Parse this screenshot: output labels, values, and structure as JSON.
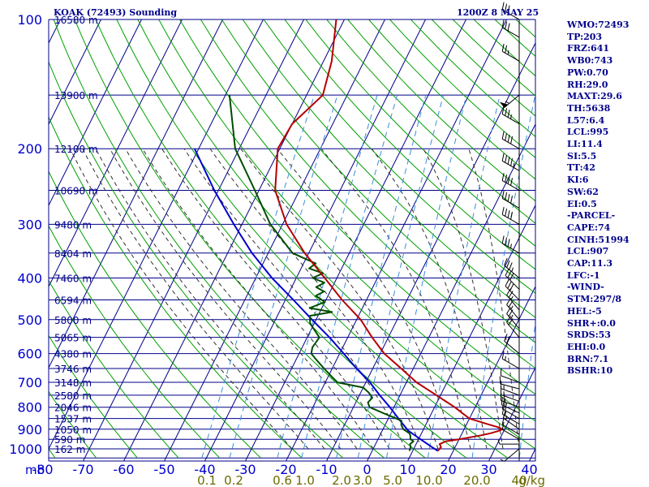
{
  "header": {
    "title": "KOAK (72493) Sounding",
    "stamp": "1200Z  8 MAY 25"
  },
  "indices": [
    "WMO:72493",
    "TP:203",
    "FRZ:641",
    "WB0:743",
    "PW:0.70",
    "RH:29.0",
    "MAXT:29.6",
    "TH:5638",
    "L57:6.4",
    "LCL:995",
    "LI:11.4",
    "SI:5.5",
    "TT:42",
    "KI:6",
    "SW:62",
    "EI:0.5",
    "-PARCEL-",
    "CAPE:74",
    "CINH:51994",
    "LCL:907",
    "CAP:11.3",
    "LFC:-1",
    "-WIND-",
    "STM:297/8",
    "HEL:-5",
    "SHR+:0.0",
    "SRDS:53",
    "EHI:0.0",
    "BRN:7.1",
    "BSHR:10"
  ],
  "colors": {
    "frame": "#00008b",
    "temperature": "#b40000",
    "dewpoint": "#004d00",
    "parcel": "#0000cd",
    "dry_adiabat": "#00a000",
    "moist_adiabat": "#303030",
    "mixing_ratio": "#3a8fd8",
    "mixing_ratio_labels": "#6b6b00"
  },
  "chart_data": {
    "type": "line",
    "title": "KOAK (72493) Sounding",
    "x_unit_label": "",
    "y_unit_label": "mb",
    "temperature_ticks": [
      "-80",
      "-70",
      "-60",
      "-50",
      "-40",
      "-30",
      "-20",
      "-10",
      "0",
      "10",
      "20",
      "30",
      "40"
    ],
    "temperature_tick_values": [
      -80,
      -70,
      -60,
      -50,
      -40,
      -30,
      -20,
      -10,
      0,
      10,
      20,
      30,
      40
    ],
    "xlim": [
      -80,
      40
    ],
    "pressure_ticks": [
      "100",
      "200",
      "300",
      "400",
      "500",
      "600",
      "700",
      "800",
      "900",
      "1000"
    ],
    "pressure_tick_values": [
      100,
      200,
      300,
      400,
      500,
      600,
      700,
      800,
      900,
      1000
    ],
    "ylim": [
      1050,
      100
    ],
    "y_scale": "log",
    "grid": true,
    "height_labels": [
      {
        "p": 100,
        "text": "16580 m"
      },
      {
        "p": 150,
        "text": "13900 m"
      },
      {
        "p": 200,
        "text": "12100 m"
      },
      {
        "p": 250,
        "text": "10690 m"
      },
      {
        "p": 300,
        "text": "9480 m"
      },
      {
        "p": 350,
        "text": "8404 m"
      },
      {
        "p": 400,
        "text": "7460 m"
      },
      {
        "p": 450,
        "text": "6594 m"
      },
      {
        "p": 500,
        "text": "5800 m"
      },
      {
        "p": 550,
        "text": "5065 m"
      },
      {
        "p": 600,
        "text": "4380 m"
      },
      {
        "p": 650,
        "text": "3746 m"
      },
      {
        "p": 700,
        "text": "3148 m"
      },
      {
        "p": 750,
        "text": "2580 m"
      },
      {
        "p": 800,
        "text": "2046 m"
      },
      {
        "p": 850,
        "text": "1537 m"
      },
      {
        "p": 900,
        "text": "1050 m"
      },
      {
        "p": 950,
        "text": "590 m"
      },
      {
        "p": 1000,
        "text": "162 m"
      }
    ],
    "mixing_ratio_labels": [
      "0.1",
      "0.2",
      "0.6",
      "1.0",
      "2.0",
      "3.0",
      "5.0",
      "10.0",
      "20.0",
      "40"
    ],
    "mixing_ratio_unit": "g/kg",
    "series": [
      {
        "key": "temperature",
        "points": [
          [
            1011,
            16.2
          ],
          [
            990,
            16.5
          ],
          [
            975,
            15.8
          ],
          [
            960,
            17.0
          ],
          [
            950,
            20.0
          ],
          [
            930,
            25.0
          ],
          [
            920,
            27.0
          ],
          [
            910,
            28.5
          ],
          [
            900,
            29.5
          ],
          [
            890,
            28.0
          ],
          [
            875,
            25.0
          ],
          [
            860,
            22.0
          ],
          [
            850,
            20.0
          ],
          [
            825,
            17.5
          ],
          [
            800,
            15.0
          ],
          [
            775,
            12.0
          ],
          [
            750,
            9.0
          ],
          [
            700,
            2.5
          ],
          [
            650,
            -3.0
          ],
          [
            600,
            -9.0
          ],
          [
            550,
            -14.0
          ],
          [
            500,
            -19.0
          ],
          [
            450,
            -26.0
          ],
          [
            400,
            -33.0
          ],
          [
            350,
            -41.0
          ],
          [
            300,
            -49.0
          ],
          [
            250,
            -56.0
          ],
          [
            200,
            -60.5
          ],
          [
            175,
            -60.0
          ],
          [
            150,
            -56.0
          ],
          [
            125,
            -58.0
          ],
          [
            100,
            -62.0
          ]
        ]
      },
      {
        "key": "dewpoint",
        "points": [
          [
            1011,
            9.2
          ],
          [
            990,
            9.0
          ],
          [
            975,
            8.5
          ],
          [
            960,
            9.0
          ],
          [
            950,
            8.0
          ],
          [
            930,
            7.5
          ],
          [
            920,
            7.0
          ],
          [
            900,
            5.0
          ],
          [
            880,
            4.0
          ],
          [
            860,
            3.5
          ],
          [
            850,
            2.0
          ],
          [
            825,
            -2.0
          ],
          [
            800,
            -6.0
          ],
          [
            780,
            -7.0
          ],
          [
            760,
            -6.5
          ],
          [
            740,
            -8.0
          ],
          [
            720,
            -10.0
          ],
          [
            700,
            -17.0
          ],
          [
            680,
            -19.0
          ],
          [
            650,
            -22.0
          ],
          [
            620,
            -25.0
          ],
          [
            600,
            -27.0
          ],
          [
            580,
            -27.5
          ],
          [
            550,
            -27.0
          ],
          [
            530,
            -29.0
          ],
          [
            510,
            -31.0
          ],
          [
            490,
            -32.0
          ],
          [
            480,
            -27.0
          ],
          [
            470,
            -33.0
          ],
          [
            455,
            -30.0
          ],
          [
            440,
            -33.0
          ],
          [
            430,
            -31.5
          ],
          [
            420,
            -34.0
          ],
          [
            410,
            -32.5
          ],
          [
            400,
            -36.0
          ],
          [
            390,
            -34.0
          ],
          [
            380,
            -38.0
          ],
          [
            370,
            -37.0
          ],
          [
            350,
            -44.0
          ],
          [
            300,
            -53.0
          ],
          [
            250,
            -61.0
          ],
          [
            200,
            -71.0
          ],
          [
            150,
            -79.0
          ]
        ]
      },
      {
        "key": "parcel",
        "points": [
          [
            1011,
            16.2
          ],
          [
            990,
            14.2
          ],
          [
            950,
            10.5
          ],
          [
            907,
            6.4
          ],
          [
            850,
            2.5
          ],
          [
            800,
            -1.0
          ],
          [
            750,
            -5.0
          ],
          [
            700,
            -9.0
          ],
          [
            650,
            -14.0
          ],
          [
            600,
            -19.0
          ],
          [
            550,
            -24.5
          ],
          [
            500,
            -31.0
          ],
          [
            450,
            -38.0
          ],
          [
            400,
            -46.0
          ],
          [
            350,
            -54.0
          ],
          [
            300,
            -62.0
          ],
          [
            250,
            -71.0
          ],
          [
            200,
            -81.0
          ]
        ]
      }
    ],
    "winds": [
      {
        "p": 1000,
        "dir": 230,
        "spd": 5
      },
      {
        "p": 975,
        "dir": 270,
        "spd": 5
      },
      {
        "p": 950,
        "dir": 300,
        "spd": 10
      },
      {
        "p": 925,
        "dir": 300,
        "spd": 10
      },
      {
        "p": 900,
        "dir": 305,
        "spd": 15
      },
      {
        "p": 875,
        "dir": 300,
        "spd": 15
      },
      {
        "p": 850,
        "dir": 300,
        "spd": 20
      },
      {
        "p": 825,
        "dir": 295,
        "spd": 20
      },
      {
        "p": 800,
        "dir": 290,
        "spd": 20
      },
      {
        "p": 775,
        "dir": 290,
        "spd": 15
      },
      {
        "p": 750,
        "dir": 290,
        "spd": 15
      },
      {
        "p": 725,
        "dir": 285,
        "spd": 10
      },
      {
        "p": 700,
        "dir": 290,
        "spd": 10
      },
      {
        "p": 650,
        "dir": 300,
        "spd": 15
      },
      {
        "p": 600,
        "dir": 310,
        "spd": 20
      },
      {
        "p": 550,
        "dir": 320,
        "spd": 20
      },
      {
        "p": 525,
        "dir": 320,
        "spd": 25
      },
      {
        "p": 500,
        "dir": 320,
        "spd": 25
      },
      {
        "p": 475,
        "dir": 320,
        "spd": 25
      },
      {
        "p": 450,
        "dir": 315,
        "spd": 30
      },
      {
        "p": 425,
        "dir": 315,
        "spd": 30
      },
      {
        "p": 400,
        "dir": 310,
        "spd": 35
      },
      {
        "p": 350,
        "dir": 300,
        "spd": 35
      },
      {
        "p": 300,
        "dir": 300,
        "spd": 40
      },
      {
        "p": 275,
        "dir": 300,
        "spd": 40
      },
      {
        "p": 250,
        "dir": 300,
        "spd": 40
      },
      {
        "p": 225,
        "dir": 300,
        "spd": 45
      },
      {
        "p": 200,
        "dir": 300,
        "spd": 40
      },
      {
        "p": 175,
        "dir": 300,
        "spd": 35
      },
      {
        "p": 150,
        "dir": 230,
        "spd": 55
      },
      {
        "p": 125,
        "dir": 300,
        "spd": 25
      },
      {
        "p": 110,
        "dir": 300,
        "spd": 30
      },
      {
        "p": 100,
        "dir": 300,
        "spd": 30
      }
    ]
  }
}
